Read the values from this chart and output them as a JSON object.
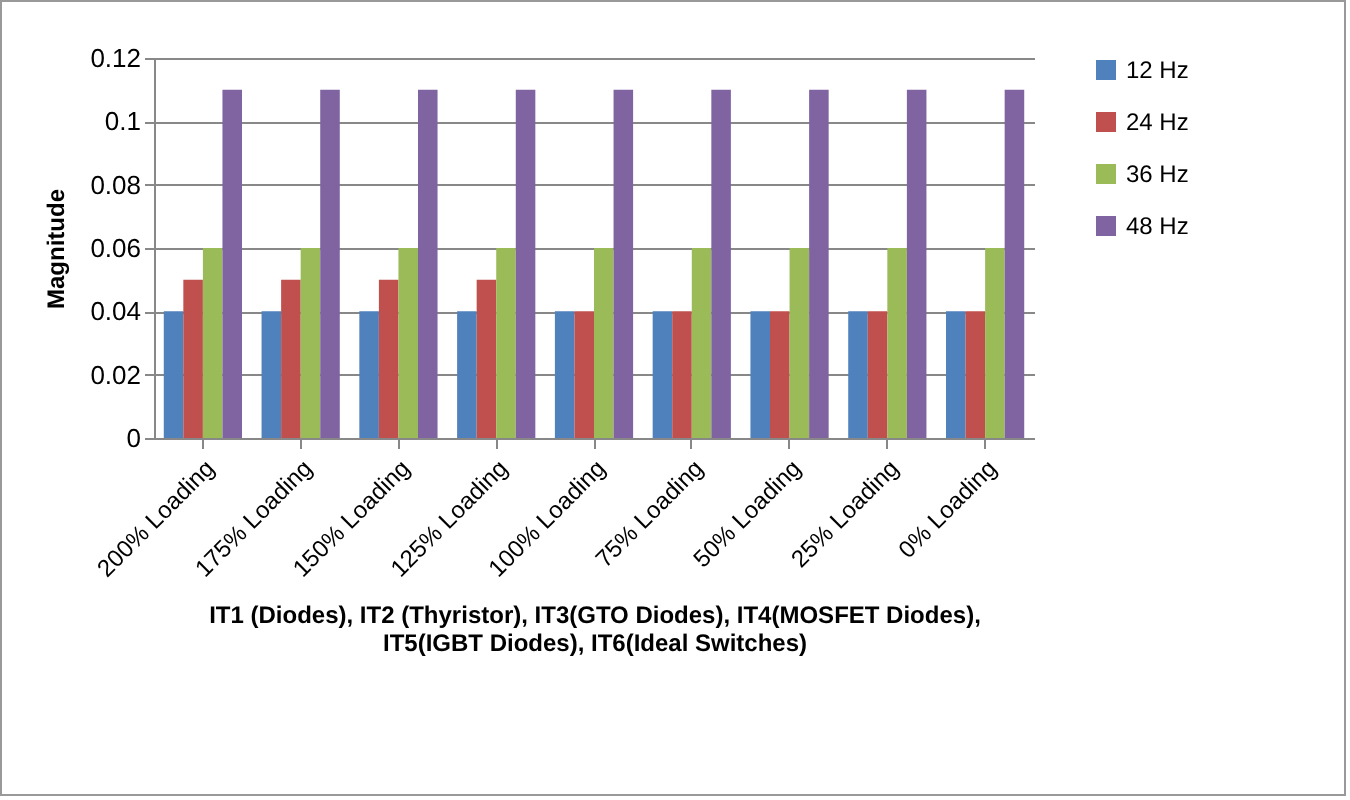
{
  "chart_data": {
    "type": "bar",
    "ylabel": "Magnitude",
    "xlabel": "IT1 (Diodes), IT2 (Thyristor), IT3(GTO Diodes), IT4(MOSFET Diodes), IT5(IGBT Diodes), IT6(Ideal Switches)",
    "categories": [
      "200% Loading",
      "175% Loading",
      "150% Loading",
      "125% Loading",
      "100% Loading",
      "75% Loading",
      "50% Loading",
      "25% Loading",
      "0% Loading"
    ],
    "series": [
      {
        "name": "12 Hz",
        "color": "#4f81bd",
        "values": [
          0.04,
          0.04,
          0.04,
          0.04,
          0.04,
          0.04,
          0.04,
          0.04,
          0.04
        ]
      },
      {
        "name": "24 Hz",
        "color": "#c0504d",
        "values": [
          0.05,
          0.05,
          0.05,
          0.05,
          0.04,
          0.04,
          0.04,
          0.04,
          0.04
        ]
      },
      {
        "name": "36 Hz",
        "color": "#9bbb59",
        "values": [
          0.06,
          0.06,
          0.06,
          0.06,
          0.06,
          0.06,
          0.06,
          0.06,
          0.06
        ]
      },
      {
        "name": "48 Hz",
        "color": "#8064a2",
        "values": [
          0.11,
          0.11,
          0.11,
          0.11,
          0.11,
          0.11,
          0.11,
          0.11,
          0.11
        ]
      }
    ],
    "ylim": [
      0,
      0.12
    ],
    "yticks": [
      0,
      0.02,
      0.04,
      0.06,
      0.08,
      0.1,
      0.12
    ],
    "grid": "y",
    "legend": "right"
  }
}
